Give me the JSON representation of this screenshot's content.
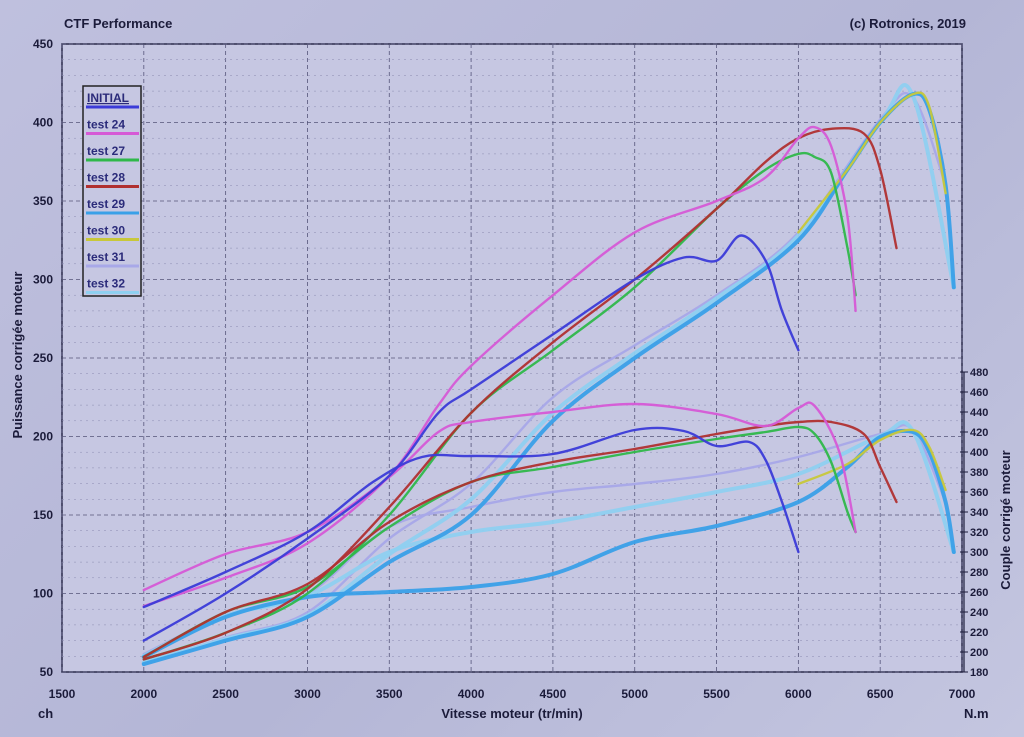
{
  "header": {
    "title": "CTF Performance",
    "copyright": "(c) Rotronics, 2019"
  },
  "chart_data": {
    "type": "line",
    "xlabel": "Vitesse moteur (tr/min)",
    "ylabel_left": "Puissance corrigée moteur",
    "ylabel_right": "Couple corrigé moteur",
    "unit_left": "ch",
    "unit_right": "N.m",
    "xlim": [
      1500,
      7000
    ],
    "ylim_left": [
      50,
      450
    ],
    "ylim_right": [
      180,
      480
    ],
    "x_ticks": [
      "1500",
      "2000",
      "2500",
      "3000",
      "3500",
      "4000",
      "4500",
      "5000",
      "5500",
      "6000",
      "6500",
      "7000"
    ],
    "y_left_ticks": [
      "50",
      "100",
      "150",
      "200",
      "250",
      "300",
      "350",
      "400",
      "450"
    ],
    "y_right_ticks": [
      "180",
      "200",
      "220",
      "240",
      "260",
      "280",
      "300",
      "320",
      "340",
      "360",
      "380",
      "400",
      "420",
      "440",
      "460",
      "480"
    ],
    "grid": true,
    "legend_position": "top-left",
    "series": [
      {
        "name": "INITIAL",
        "color": "#3b3bd8",
        "power": [
          [
            2000,
            70
          ],
          [
            2500,
            100
          ],
          [
            3000,
            135
          ],
          [
            3500,
            175
          ],
          [
            3800,
            215
          ],
          [
            4000,
            230
          ],
          [
            4500,
            265
          ],
          [
            5000,
            300
          ],
          [
            5300,
            314
          ],
          [
            5500,
            312
          ],
          [
            5650,
            328
          ],
          [
            5800,
            312
          ],
          [
            5900,
            280
          ],
          [
            6000,
            255
          ]
        ],
        "torque": [
          [
            2000,
            245
          ],
          [
            2500,
            280
          ],
          [
            3000,
            320
          ],
          [
            3400,
            370
          ],
          [
            3700,
            395
          ],
          [
            4000,
            396
          ],
          [
            4500,
            398
          ],
          [
            5000,
            422
          ],
          [
            5300,
            421
          ],
          [
            5500,
            406
          ],
          [
            5700,
            410
          ],
          [
            5800,
            392
          ],
          [
            5900,
            350
          ],
          [
            6000,
            300
          ]
        ]
      },
      {
        "name": "test 24",
        "color": "#d65ad6",
        "power": [
          [
            2000,
            92
          ],
          [
            2500,
            110
          ],
          [
            3000,
            132
          ],
          [
            3500,
            175
          ],
          [
            3800,
            220
          ],
          [
            4000,
            245
          ],
          [
            4500,
            290
          ],
          [
            5000,
            330
          ],
          [
            5500,
            350
          ],
          [
            5800,
            365
          ],
          [
            6000,
            390
          ],
          [
            6100,
            397
          ],
          [
            6200,
            385
          ],
          [
            6300,
            340
          ],
          [
            6350,
            280
          ]
        ],
        "torque": [
          [
            2000,
            262
          ],
          [
            2500,
            298
          ],
          [
            3000,
            320
          ],
          [
            3500,
            375
          ],
          [
            3800,
            420
          ],
          [
            4000,
            430
          ],
          [
            4500,
            440
          ],
          [
            5000,
            448
          ],
          [
            5500,
            438
          ],
          [
            5800,
            426
          ],
          [
            6000,
            444
          ],
          [
            6100,
            446
          ],
          [
            6250,
            400
          ],
          [
            6350,
            320
          ]
        ]
      },
      {
        "name": "test 27",
        "color": "#2fb84a",
        "power": [
          [
            2000,
            58
          ],
          [
            2500,
            75
          ],
          [
            3000,
            100
          ],
          [
            3500,
            150
          ],
          [
            4000,
            215
          ],
          [
            4500,
            255
          ],
          [
            5000,
            295
          ],
          [
            5500,
            345
          ],
          [
            5800,
            370
          ],
          [
            6000,
            380
          ],
          [
            6100,
            378
          ],
          [
            6200,
            368
          ],
          [
            6300,
            320
          ],
          [
            6350,
            290
          ]
        ],
        "torque": [
          [
            2000,
            195
          ],
          [
            2500,
            240
          ],
          [
            3000,
            265
          ],
          [
            3500,
            325
          ],
          [
            4000,
            370
          ],
          [
            4500,
            385
          ],
          [
            5000,
            400
          ],
          [
            5500,
            413
          ],
          [
            5800,
            420
          ],
          [
            6000,
            425
          ],
          [
            6100,
            418
          ],
          [
            6200,
            390
          ],
          [
            6300,
            340
          ],
          [
            6350,
            320
          ]
        ]
      },
      {
        "name": "test 28",
        "color": "#b03030",
        "power": [
          [
            2000,
            58
          ],
          [
            2500,
            75
          ],
          [
            3000,
            103
          ],
          [
            3500,
            155
          ],
          [
            4000,
            215
          ],
          [
            4500,
            260
          ],
          [
            5000,
            300
          ],
          [
            5500,
            345
          ],
          [
            5800,
            375
          ],
          [
            6000,
            390
          ],
          [
            6200,
            396
          ],
          [
            6400,
            393
          ],
          [
            6500,
            370
          ],
          [
            6600,
            320
          ]
        ],
        "torque": [
          [
            2000,
            195
          ],
          [
            2500,
            240
          ],
          [
            3000,
            268
          ],
          [
            3500,
            330
          ],
          [
            4000,
            370
          ],
          [
            4500,
            390
          ],
          [
            5000,
            403
          ],
          [
            5500,
            418
          ],
          [
            5800,
            426
          ],
          [
            6000,
            430
          ],
          [
            6200,
            430
          ],
          [
            6400,
            418
          ],
          [
            6500,
            385
          ],
          [
            6600,
            350
          ]
        ]
      },
      {
        "name": "test 29",
        "color": "#3aa0e8",
        "power": [
          [
            2000,
            55
          ],
          [
            2500,
            70
          ],
          [
            3000,
            85
          ],
          [
            3500,
            120
          ],
          [
            4000,
            150
          ],
          [
            4500,
            210
          ],
          [
            5000,
            250
          ],
          [
            5500,
            285
          ],
          [
            6000,
            325
          ],
          [
            6300,
            370
          ],
          [
            6500,
            400
          ],
          [
            6700,
            418
          ],
          [
            6800,
            408
          ],
          [
            6900,
            360
          ],
          [
            6950,
            295
          ]
        ],
        "torque": [
          [
            2000,
            195
          ],
          [
            2500,
            235
          ],
          [
            3000,
            255
          ],
          [
            3500,
            260
          ],
          [
            4000,
            265
          ],
          [
            4500,
            278
          ],
          [
            5000,
            310
          ],
          [
            5500,
            326
          ],
          [
            6000,
            350
          ],
          [
            6300,
            385
          ],
          [
            6500,
            415
          ],
          [
            6700,
            420
          ],
          [
            6800,
            400
          ],
          [
            6900,
            350
          ],
          [
            6950,
            300
          ]
        ]
      },
      {
        "name": "test 30",
        "color": "#c8c83a",
        "power": [
          [
            6000,
            330
          ],
          [
            6300,
            370
          ],
          [
            6500,
            400
          ],
          [
            6700,
            418
          ],
          [
            6800,
            410
          ],
          [
            6900,
            355
          ]
        ],
        "torque": [
          [
            6000,
            368
          ],
          [
            6300,
            388
          ],
          [
            6500,
            412
          ],
          [
            6700,
            422
          ],
          [
            6800,
            405
          ],
          [
            6900,
            362
          ]
        ]
      },
      {
        "name": "test 31",
        "color": "#a8a8e8",
        "power": [
          [
            2000,
            55
          ],
          [
            2500,
            72
          ],
          [
            3000,
            88
          ],
          [
            3500,
            135
          ],
          [
            4000,
            170
          ],
          [
            4500,
            225
          ],
          [
            5000,
            258
          ],
          [
            5500,
            290
          ],
          [
            6000,
            330
          ],
          [
            6500,
            402
          ],
          [
            6700,
            416
          ],
          [
            6900,
            360
          ]
        ],
        "torque": [
          [
            2000,
            198
          ],
          [
            2500,
            237
          ],
          [
            3000,
            258
          ],
          [
            3500,
            325
          ],
          [
            4000,
            345
          ],
          [
            4500,
            360
          ],
          [
            5000,
            368
          ],
          [
            5500,
            378
          ],
          [
            6000,
            395
          ],
          [
            6500,
            418
          ],
          [
            6700,
            422
          ],
          [
            6900,
            350
          ]
        ]
      },
      {
        "name": "test 32",
        "color": "#8fd0f0",
        "power": [
          [
            2000,
            56
          ],
          [
            2500,
            71
          ],
          [
            3000,
            86
          ],
          [
            3500,
            125
          ],
          [
            4000,
            160
          ],
          [
            4500,
            215
          ],
          [
            5000,
            253
          ],
          [
            5500,
            288
          ],
          [
            6000,
            328
          ],
          [
            6500,
            400
          ],
          [
            6700,
            417
          ],
          [
            6950,
            295
          ]
        ],
        "torque": [
          [
            2000,
            196
          ],
          [
            2500,
            236
          ],
          [
            3000,
            256
          ],
          [
            3500,
            300
          ],
          [
            4000,
            320
          ],
          [
            4500,
            330
          ],
          [
            5000,
            345
          ],
          [
            5500,
            360
          ],
          [
            6000,
            378
          ],
          [
            6500,
            416
          ],
          [
            6700,
            421
          ],
          [
            6950,
            300
          ]
        ]
      }
    ]
  }
}
